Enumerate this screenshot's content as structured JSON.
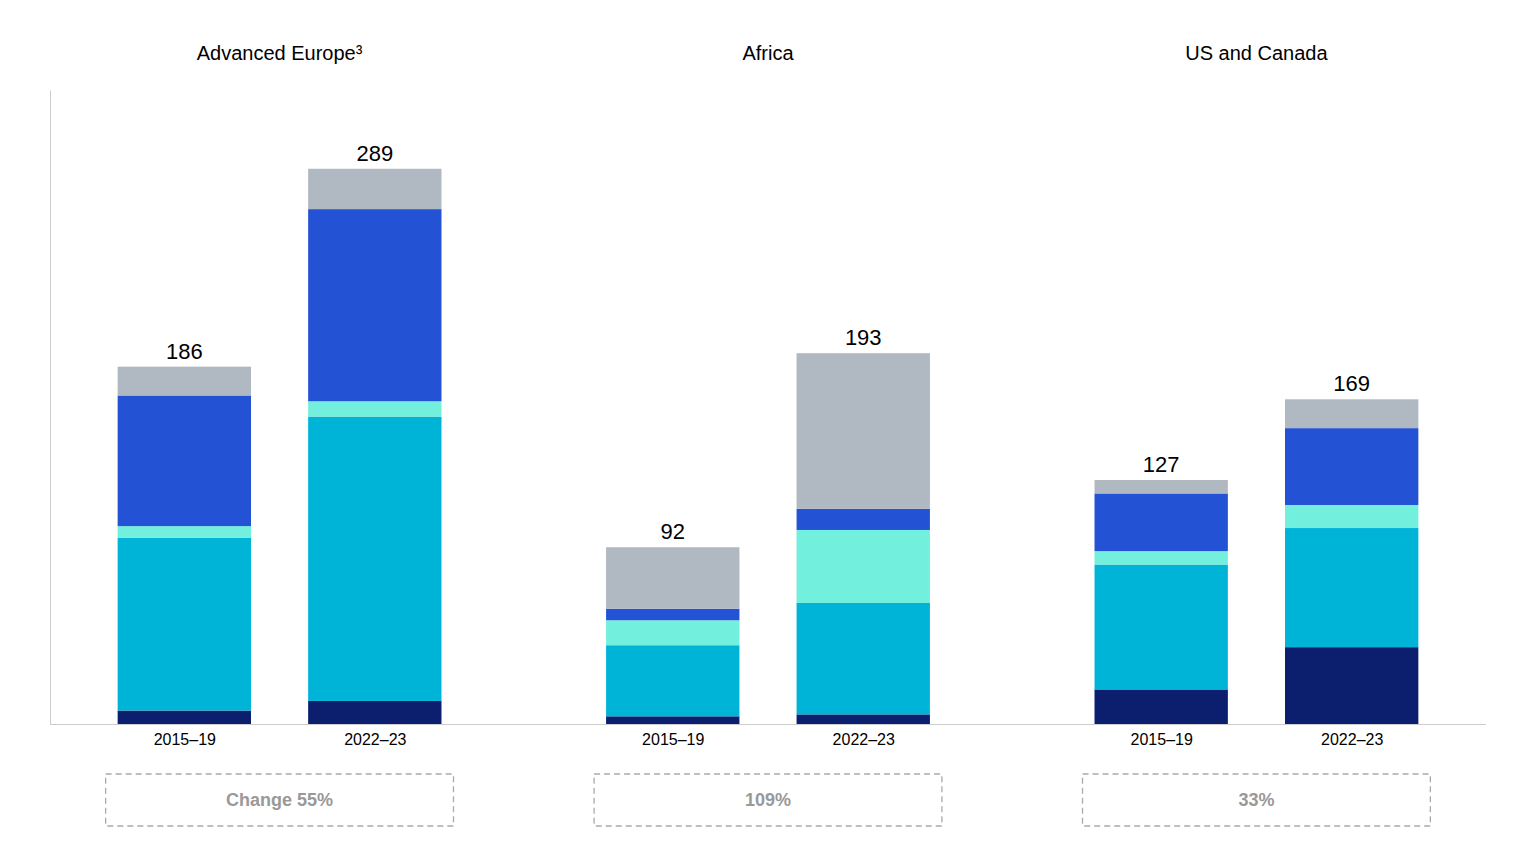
{
  "chart_data": {
    "type": "bar",
    "stacked": true,
    "tick_labels": "x",
    "grid": false,
    "categories": [
      "2015–19",
      "2022–23",
      "2015–19",
      "2022–23",
      "2015–19",
      "2022–23"
    ],
    "groups": [
      {
        "title": "Advanced Europe³",
        "annotation": "Change 55%"
      },
      {
        "title": "Africa",
        "annotation": "109%"
      },
      {
        "title": "US and Canada",
        "annotation": "33%"
      }
    ],
    "series": [
      {
        "color": "#0b1f6e",
        "values": [
          7,
          12,
          4,
          5,
          18,
          40
        ]
      },
      {
        "color": "#00b4d8",
        "values": [
          90,
          148,
          37,
          58,
          65,
          62
        ]
      },
      {
        "color": "#72efdd",
        "values": [
          6,
          8,
          13,
          38,
          7,
          12
        ]
      },
      {
        "color": "#2452d4",
        "values": [
          68,
          100,
          6,
          11,
          30,
          40
        ]
      },
      {
        "color": "#b0b8c1",
        "values": [
          15,
          21,
          32,
          81,
          7,
          15
        ]
      }
    ],
    "totals": [
      186,
      289,
      92,
      193,
      127,
      169
    ],
    "ylim": [
      0,
      330
    ]
  }
}
